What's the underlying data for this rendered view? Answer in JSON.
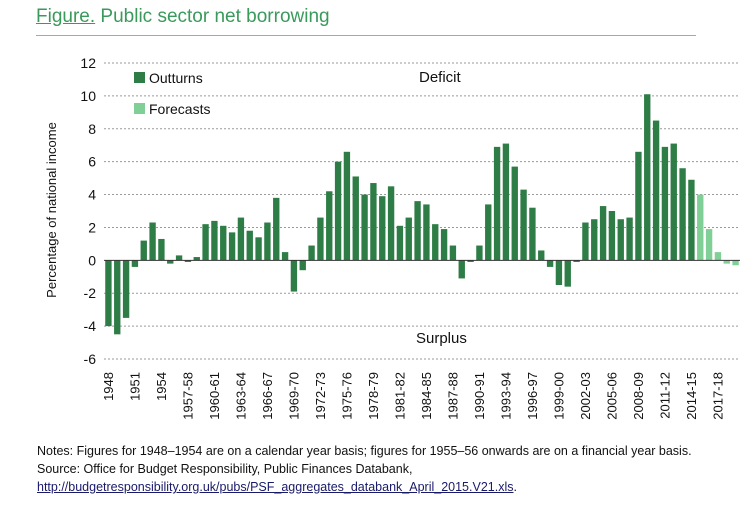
{
  "figure": {
    "title_prefix": "Figure.",
    "title": "Public sector net borrowing",
    "notes": "Notes: Figures for 1948–1954 are on a calendar year basis; figures for 1955–56 onwards are on a financial year basis.",
    "source": "Source: Office for Budget Responsibility, Public Finances Databank,",
    "source_link": "http://budgetresponsibility.org.uk/pubs/PSF_aggregates_databank_April_2015.V21.xls",
    "source_link_suffix": "."
  },
  "colors": {
    "outturn": "#2e7d46",
    "forecast": "#7fcf96",
    "title": "#3a9a5b",
    "grid": "#9a9a9a"
  },
  "chart_data": {
    "type": "bar",
    "ylabel": "Percentage of national income",
    "ylim": [
      -6,
      12
    ],
    "yticks": [
      -6,
      -4,
      -2,
      0,
      2,
      4,
      6,
      8,
      10,
      12
    ],
    "grid": "horizontal dashed",
    "legend_position": "top-left",
    "annotations": [
      "Deficit",
      "Surplus"
    ],
    "categories": [
      "1948",
      "1949",
      "1950",
      "1951",
      "1952",
      "1953",
      "1954",
      "1955-56",
      "1956-57",
      "1957-58",
      "1958-59",
      "1959-60",
      "1960-61",
      "1961-62",
      "1962-63",
      "1963-64",
      "1964-65",
      "1965-66",
      "1966-67",
      "1967-68",
      "1968-69",
      "1969-70",
      "1970-71",
      "1971-72",
      "1972-73",
      "1973-74",
      "1974-75",
      "1975-76",
      "1976-77",
      "1977-78",
      "1978-79",
      "1979-80",
      "1980-81",
      "1981-82",
      "1982-83",
      "1983-84",
      "1984-85",
      "1985-86",
      "1986-87",
      "1987-88",
      "1988-89",
      "1989-90",
      "1990-91",
      "1991-92",
      "1992-93",
      "1993-94",
      "1994-95",
      "1995-96",
      "1996-97",
      "1997-98",
      "1998-99",
      "1999-00",
      "2000-01",
      "2001-02",
      "2002-03",
      "2003-04",
      "2004-05",
      "2005-06",
      "2006-07",
      "2007-08",
      "2008-09",
      "2009-10",
      "2010-11",
      "2011-12",
      "2012-13",
      "2013-14",
      "2014-15",
      "2015-16",
      "2016-17",
      "2017-18",
      "2018-19",
      "2019-20"
    ],
    "xtick_labels": [
      "1948",
      "1951",
      "1954",
      "1957-58",
      "1960-61",
      "1963-64",
      "1966-67",
      "1969-70",
      "1972-73",
      "1975-76",
      "1978-79",
      "1981-82",
      "1984-85",
      "1987-88",
      "1990-91",
      "1993-94",
      "1996-97",
      "1999-00",
      "2002-03",
      "2005-06",
      "2008-09",
      "2011-12",
      "2014-15",
      "2017-18"
    ],
    "series": [
      {
        "name": "Outturns",
        "values": [
          -4.0,
          -4.5,
          -3.5,
          -0.4,
          1.2,
          2.3,
          1.3,
          -0.2,
          0.3,
          -0.1,
          0.2,
          2.2,
          2.4,
          2.1,
          1.7,
          2.6,
          1.8,
          1.4,
          2.3,
          3.8,
          0.5,
          -1.9,
          -0.6,
          0.9,
          2.6,
          4.2,
          6.0,
          6.6,
          5.1,
          4.0,
          4.7,
          3.9,
          4.5,
          2.1,
          2.6,
          3.6,
          3.4,
          2.2,
          1.9,
          0.9,
          -1.1,
          -0.1,
          0.9,
          3.4,
          6.9,
          7.1,
          5.7,
          4.3,
          3.2,
          0.6,
          -0.4,
          -1.5,
          -1.6,
          -0.1,
          2.3,
          2.5,
          3.3,
          3.0,
          2.5,
          2.6,
          6.6,
          10.1,
          8.5,
          6.9,
          7.1,
          5.6,
          4.9,
          null,
          null,
          null,
          null,
          null
        ]
      },
      {
        "name": "Forecasts",
        "values": [
          null,
          null,
          null,
          null,
          null,
          null,
          null,
          null,
          null,
          null,
          null,
          null,
          null,
          null,
          null,
          null,
          null,
          null,
          null,
          null,
          null,
          null,
          null,
          null,
          null,
          null,
          null,
          null,
          null,
          null,
          null,
          null,
          null,
          null,
          null,
          null,
          null,
          null,
          null,
          null,
          null,
          null,
          null,
          null,
          null,
          null,
          null,
          null,
          null,
          null,
          null,
          null,
          null,
          null,
          null,
          null,
          null,
          null,
          null,
          null,
          null,
          null,
          null,
          null,
          null,
          null,
          null,
          4.0,
          1.9,
          0.5,
          -0.2,
          -0.3
        ]
      }
    ]
  }
}
